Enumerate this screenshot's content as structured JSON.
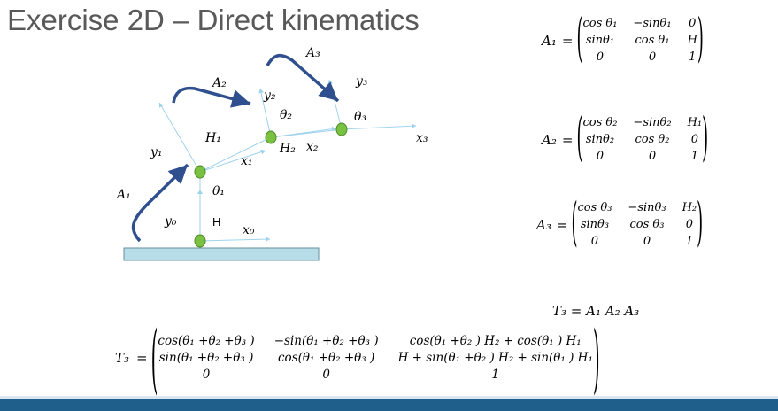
{
  "slide": {
    "title": "Exercise 2D – Direct kinematics"
  },
  "diagram": {
    "labels": {
      "A1": "A₁",
      "A2": "A₂",
      "A3": "A₃",
      "y0": "y₀",
      "x0": "x₀",
      "y1": "y₁",
      "x1": "x₁",
      "y2": "y₂",
      "x2": "x₂",
      "y3": "y₃",
      "x3": "x₃",
      "theta1": "θ₁",
      "theta2": "θ₂",
      "theta3": "θ₃",
      "H": "H",
      "H1": "H₁",
      "H2": "H₂"
    }
  },
  "matrices": {
    "A1": {
      "name": "A₁",
      "eq": "=",
      "rows": [
        [
          "cos θ₁",
          "−sinθ₁",
          "0"
        ],
        [
          "sinθ₁",
          "cos θ₁",
          "H"
        ],
        [
          "0",
          "0",
          "1"
        ]
      ]
    },
    "A2": {
      "name": "A₂",
      "eq": "=",
      "rows": [
        [
          "cos θ₂",
          "−sinθ₂",
          "H₁"
        ],
        [
          "sinθ₂",
          "cos θ₂",
          "0"
        ],
        [
          "0",
          "0",
          "1"
        ]
      ]
    },
    "A3": {
      "name": "A₃",
      "eq": "=",
      "rows": [
        [
          "cos θ₃",
          "−sinθ₃",
          "H₂"
        ],
        [
          "sinθ₃",
          "cos θ₃",
          "0"
        ],
        [
          "0",
          "0",
          "1"
        ]
      ]
    }
  },
  "product": {
    "text": "T₃  = A₁ A₂ A₃"
  },
  "T3": {
    "name": "T₃",
    "eq": "=",
    "rows": [
      [
        "cos(θ₁ +θ₂ +θ₃ )",
        "−sin(θ₁ +θ₂ +θ₃ )",
        "cos(θ₁ +θ₂ ) H₂ + cos(θ₁ ) H₁"
      ],
      [
        "sin(θ₁ +θ₂ +θ₃ )",
        "cos(θ₁ +θ₂ +θ₃ )",
        "H + sin(θ₁ +θ₂ ) H₂ + sin(θ₁ ) H₁"
      ],
      [
        "0",
        "0",
        "1"
      ]
    ]
  },
  "colors": {
    "arrow": "#2f4f8f",
    "joint": "#7ac142",
    "base": "#b7dde8",
    "axis": "#9fd3ec",
    "footer": "#1f5f8b"
  }
}
